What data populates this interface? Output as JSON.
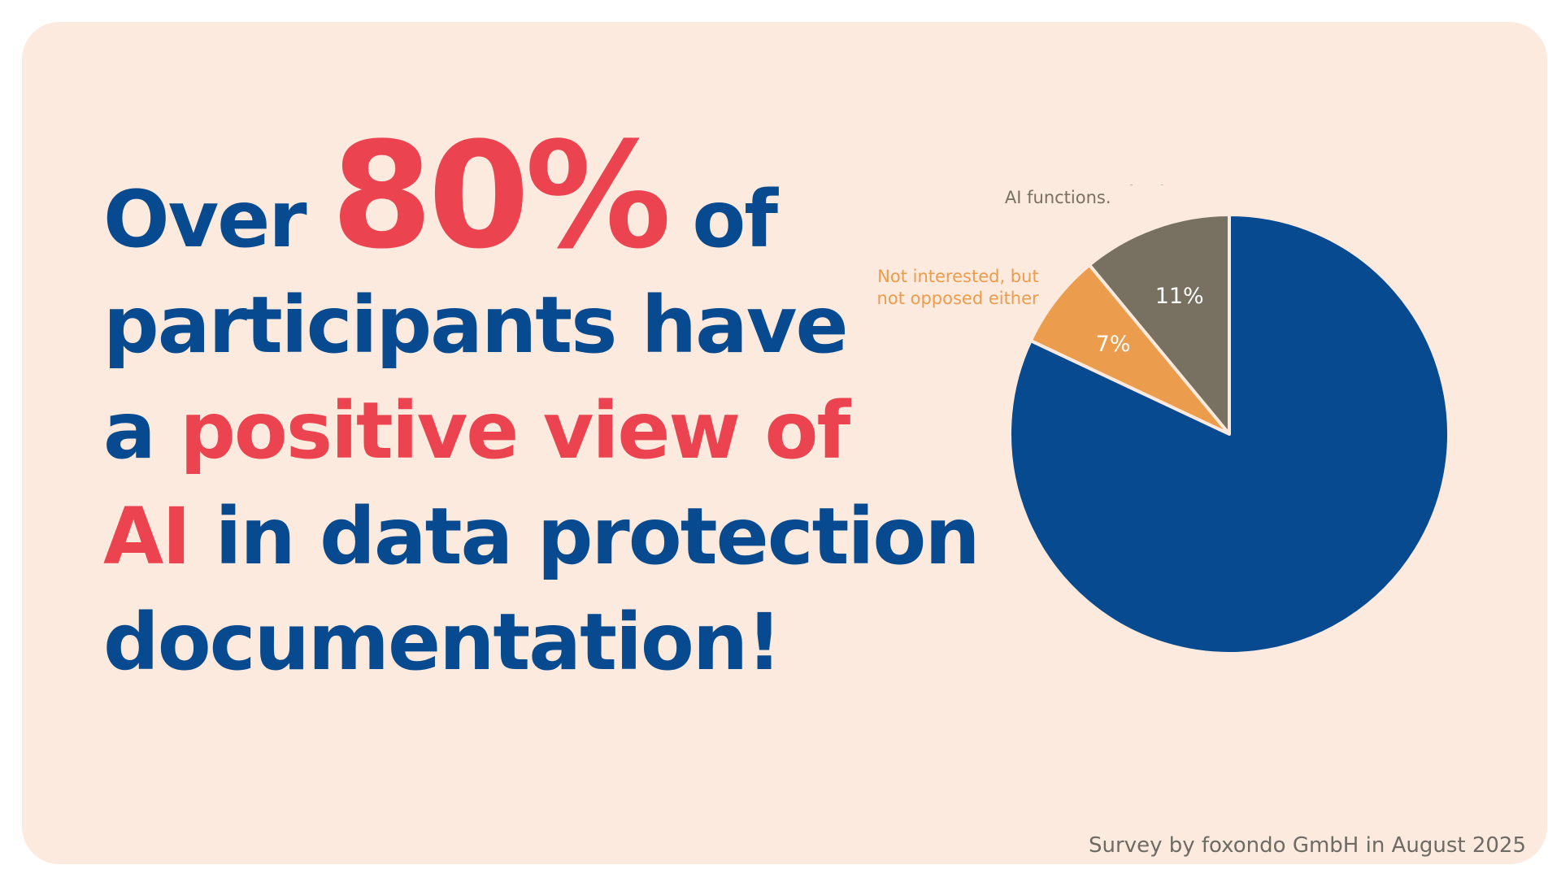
{
  "headline": {
    "l1_a": "Over ",
    "l1_big": "80%",
    "l1_b": " of",
    "l2": "participants have",
    "l3_a": "a ",
    "l3_hl": "positive view of",
    "l4_hl": "AI",
    "l4_b": " in data protection",
    "l5": "documentation!"
  },
  "source": "Survey by foxondo GmbH in August 2025",
  "colors": {
    "blue": "#074a8f",
    "red": "#eb4350",
    "orange": "#eb9c4c",
    "gray": "#787060",
    "background": "#fdeade"
  },
  "chart_data": {
    "type": "pie",
    "title": "",
    "slices": [
      {
        "label": "I fundamentally reject AI functions.",
        "value": 11,
        "value_label": "11%",
        "color": "#787060"
      },
      {
        "label": "Not interested, but not opposed either",
        "value": 7,
        "value_label": "7%",
        "color": "#eb9c4c"
      },
      {
        "label": "",
        "value": 82,
        "value_label": "",
        "color": "#074a8f"
      }
    ]
  }
}
